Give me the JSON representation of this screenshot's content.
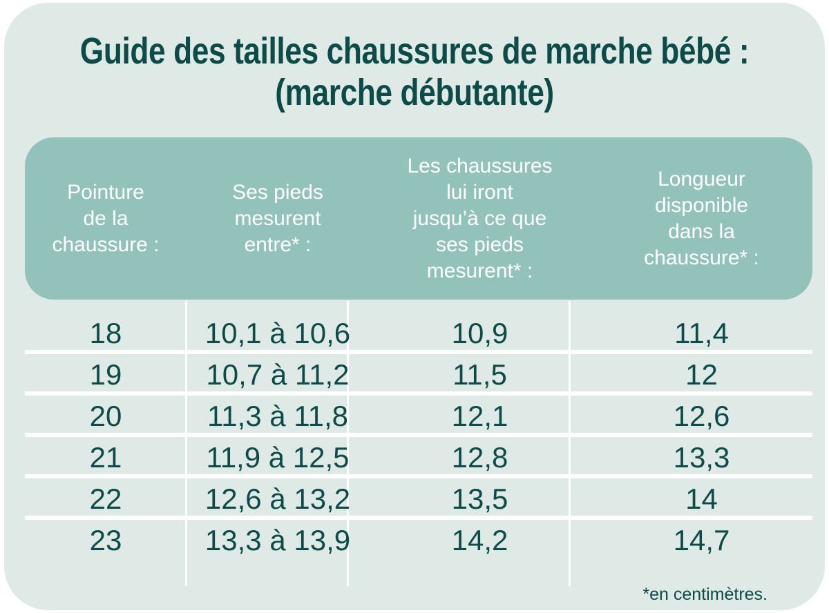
{
  "title": {
    "line1": "Guide des tailles chaussures de marche bébé :",
    "line2": "(marche débutante)"
  },
  "table": {
    "headers": [
      "Pointure\nde la\nchaussure :",
      "Ses pieds\nmesurent\nentre* :",
      "Les chaussures\nlui iront\njusqu’à ce que\nses pieds\nmesurent* :",
      "Longueur\ndisponible\ndans la\nchaussure* :"
    ],
    "rows": [
      [
        "18",
        "10,1 à 10,6",
        "10,9",
        "11,4"
      ],
      [
        "19",
        "10,7 à 11,2",
        "11,5",
        "12"
      ],
      [
        "20",
        "11,3 à 11,8",
        "12,1",
        "12,6"
      ],
      [
        "21",
        "11,9 à 12,5",
        "12,8",
        "13,3"
      ],
      [
        "22",
        "12,6 à 13,2",
        "13,5",
        "14"
      ],
      [
        "23",
        "13,3 à 13,9",
        "14,2",
        "14,7"
      ]
    ]
  },
  "footnote": "*en centimètres.",
  "colors": {
    "card_bg": "#dfeae7",
    "header_bg": "#93c2ba",
    "text_dark": "#0d4b48",
    "header_text": "#ffffff",
    "line_white": "#ffffff"
  }
}
